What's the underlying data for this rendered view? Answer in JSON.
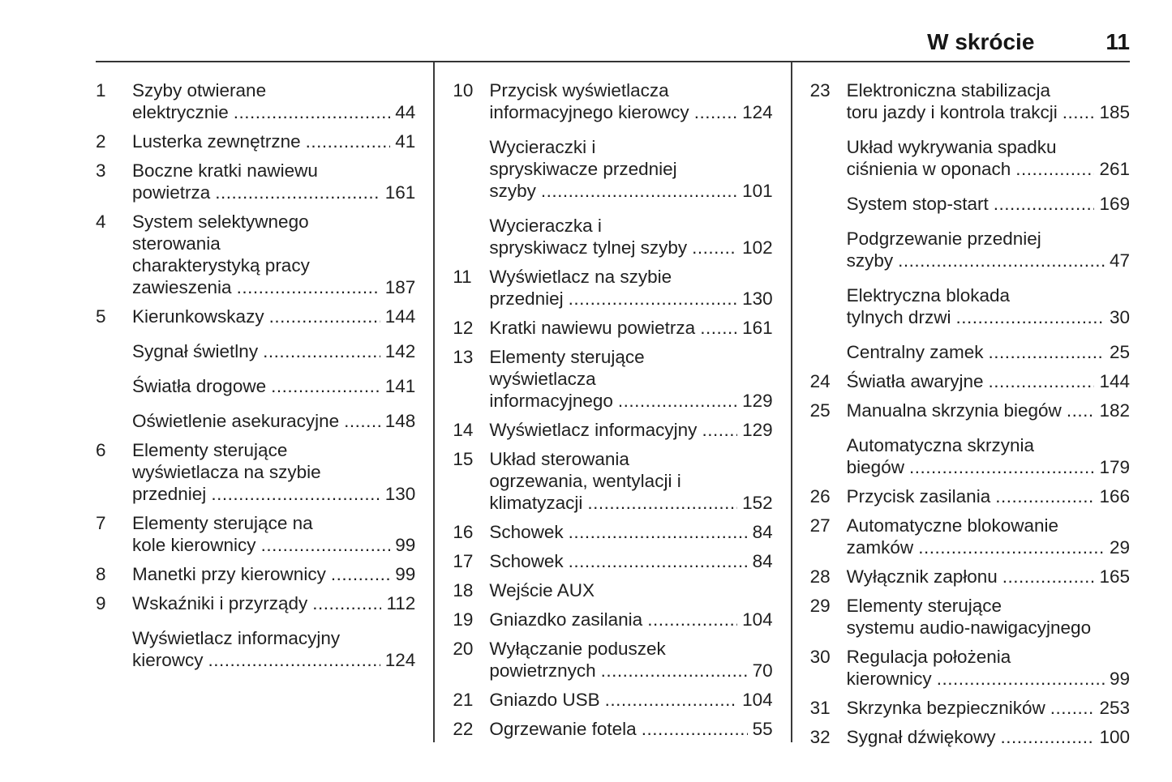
{
  "header": {
    "chapter": "W skrócie",
    "page_number": "11"
  },
  "colors": {
    "text": "#1f1f1f",
    "background": "#ffffff",
    "rule": "#343434"
  },
  "columns": [
    {
      "entries": [
        {
          "num": "1",
          "lines": [
            "Szyby otwierane",
            "elektrycznie"
          ],
          "page": "44"
        },
        {
          "num": "2",
          "lines": [
            "Lusterka zewnętrzne"
          ],
          "page": "41"
        },
        {
          "num": "3",
          "lines": [
            "Boczne kratki nawiewu",
            "powietrza"
          ],
          "page": "161"
        },
        {
          "num": "4",
          "lines": [
            "System selektywnego",
            "sterowania",
            "charakterystyką pracy",
            "zawieszenia"
          ],
          "page": "187"
        },
        {
          "num": "5",
          "lines": [
            "Kierunkowskazy"
          ],
          "page": "144"
        },
        {
          "num": "",
          "lines": [
            "Sygnał świetlny"
          ],
          "page": "142"
        },
        {
          "num": "",
          "lines": [
            "Światła drogowe"
          ],
          "page": "141"
        },
        {
          "num": "",
          "lines": [
            "Oświetlenie asekuracyjne"
          ],
          "page": "148"
        },
        {
          "num": "6",
          "lines": [
            "Elementy sterujące",
            "wyświetlacza na szybie",
            "przedniej"
          ],
          "page": "130"
        },
        {
          "num": "7",
          "lines": [
            "Elementy sterujące na",
            "kole kierownicy"
          ],
          "page": "99"
        },
        {
          "num": "8",
          "lines": [
            "Manetki przy kierownicy"
          ],
          "page": "99"
        },
        {
          "num": "9",
          "lines": [
            "Wskaźniki i przyrządy"
          ],
          "page": "112"
        },
        {
          "num": "",
          "lines": [
            "Wyświetlacz informacyjny",
            "kierowcy"
          ],
          "page": "124"
        }
      ]
    },
    {
      "entries": [
        {
          "num": "10",
          "lines": [
            "Przycisk wyświetlacza",
            "informacyjnego kierowcy"
          ],
          "page": "124"
        },
        {
          "num": "",
          "lines": [
            "Wycieraczki i",
            "spryskiwacze przedniej",
            "szyby"
          ],
          "page": "101"
        },
        {
          "num": "",
          "lines": [
            "Wycieraczka i",
            "spryskiwacz tylnej szyby"
          ],
          "page": "102"
        },
        {
          "num": "11",
          "lines": [
            "Wyświetlacz na szybie",
            "przedniej"
          ],
          "page": "130"
        },
        {
          "num": "12",
          "lines": [
            "Kratki nawiewu powietrza"
          ],
          "page": "161"
        },
        {
          "num": "13",
          "lines": [
            "Elementy sterujące",
            "wyświetlacza",
            "informacyjnego"
          ],
          "page": "129"
        },
        {
          "num": "14",
          "lines": [
            "Wyświetlacz informacyjny"
          ],
          "page": "129"
        },
        {
          "num": "15",
          "lines": [
            "Układ sterowania",
            "ogrzewania, wentylacji i",
            "klimatyzacji"
          ],
          "page": "152"
        },
        {
          "num": "16",
          "lines": [
            "Schowek"
          ],
          "page": "84"
        },
        {
          "num": "17",
          "lines": [
            "Schowek"
          ],
          "page": "84"
        },
        {
          "num": "18",
          "lines": [
            "Wejście AUX"
          ],
          "page": null
        },
        {
          "num": "19",
          "lines": [
            "Gniazdko zasilania"
          ],
          "page": "104"
        },
        {
          "num": "20",
          "lines": [
            "Wyłączanie poduszek",
            "powietrznych"
          ],
          "page": "70"
        },
        {
          "num": "21",
          "lines": [
            "Gniazdo USB"
          ],
          "page": "104"
        },
        {
          "num": "22",
          "lines": [
            "Ogrzewanie fotela"
          ],
          "page": "55"
        }
      ]
    },
    {
      "entries": [
        {
          "num": "23",
          "lines": [
            "Elektroniczna stabilizacja",
            "toru jazdy i kontrola trakcji"
          ],
          "page": "185"
        },
        {
          "num": "",
          "lines": [
            "Układ wykrywania spadku",
            "ciśnienia w oponach"
          ],
          "page": "261"
        },
        {
          "num": "",
          "lines": [
            "System stop-start"
          ],
          "page": "169"
        },
        {
          "num": "",
          "lines": [
            "Podgrzewanie przedniej",
            "szyby"
          ],
          "page": "47"
        },
        {
          "num": "",
          "lines": [
            "Elektryczna blokada",
            "tylnych drzwi"
          ],
          "page": "30"
        },
        {
          "num": "",
          "lines": [
            "Centralny zamek"
          ],
          "page": "25"
        },
        {
          "num": "24",
          "lines": [
            "Światła awaryjne"
          ],
          "page": "144"
        },
        {
          "num": "25",
          "lines": [
            "Manualna skrzynia biegów"
          ],
          "page": "182"
        },
        {
          "num": "",
          "lines": [
            "Automatyczna skrzynia",
            "biegów"
          ],
          "page": "179"
        },
        {
          "num": "26",
          "lines": [
            "Przycisk zasilania"
          ],
          "page": "166"
        },
        {
          "num": "27",
          "lines": [
            "Automatyczne blokowanie",
            "zamków"
          ],
          "page": "29"
        },
        {
          "num": "28",
          "lines": [
            "Wyłącznik zapłonu"
          ],
          "page": "165"
        },
        {
          "num": "29",
          "lines": [
            "Elementy sterujące",
            "systemu audio-nawigacyjnego"
          ],
          "page": null
        },
        {
          "num": "30",
          "lines": [
            "Regulacja położenia",
            "kierownicy"
          ],
          "page": "99"
        },
        {
          "num": "31",
          "lines": [
            "Skrzynka bezpieczników"
          ],
          "page": "253"
        },
        {
          "num": "32",
          "lines": [
            "Sygnał dźwiękowy"
          ],
          "page": "100"
        }
      ]
    }
  ]
}
